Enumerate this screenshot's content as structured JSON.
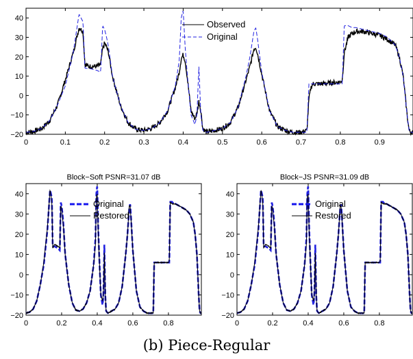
{
  "caption": "(b) Piece-Regular",
  "colors": {
    "observed": "#000000",
    "original": "#2020e0",
    "restored": "#000000",
    "axes": "#000000"
  },
  "chart_data": [
    {
      "type": "line",
      "title": "",
      "xlabel": "",
      "ylabel": "",
      "xlim": [
        0,
        0.985
      ],
      "ylim": [
        -20,
        45
      ],
      "xticks": [
        0,
        0.1,
        0.2,
        0.3,
        0.4,
        0.5,
        0.6,
        0.7,
        0.8,
        0.9
      ],
      "yticks": [
        -20,
        -10,
        0,
        10,
        20,
        30,
        40
      ],
      "legend": {
        "placement": "top-center",
        "entries": [
          "Observed",
          "Original"
        ]
      },
      "series": [
        {
          "name": "Observed",
          "style": "solid",
          "noisy": true
        },
        {
          "name": "Original",
          "style": "dashed"
        }
      ]
    },
    {
      "type": "line",
      "title": "Block−Soft PSNR=31.07 dB",
      "xlabel": "",
      "ylabel": "",
      "xlim": [
        0,
        0.985
      ],
      "ylim": [
        -20,
        45
      ],
      "xticks": [
        0,
        0.2,
        0.4,
        0.6,
        0.8
      ],
      "yticks": [
        -20,
        -10,
        0,
        10,
        20,
        30,
        40
      ],
      "legend": {
        "placement": "top-center",
        "entries": [
          "Original",
          "Restored"
        ]
      },
      "series": [
        {
          "name": "Original",
          "style": "dashed-thick"
        },
        {
          "name": "Restored",
          "style": "solid"
        }
      ]
    },
    {
      "type": "line",
      "title": "Block−JS PSNR=31.09 dB",
      "xlabel": "",
      "ylabel": "",
      "xlim": [
        0,
        0.985
      ],
      "ylim": [
        -20,
        45
      ],
      "xticks": [
        0,
        0.2,
        0.4,
        0.6,
        0.8
      ],
      "yticks": [
        -20,
        -10,
        0,
        10,
        20,
        30,
        40
      ],
      "legend": {
        "placement": "top-center",
        "entries": [
          "Original",
          "Restored"
        ]
      },
      "series": [
        {
          "name": "Original",
          "style": "dashed-thick"
        },
        {
          "name": "Restored",
          "style": "solid"
        }
      ]
    }
  ],
  "signal": {
    "x": [
      0,
      0.02,
      0.04,
      0.06,
      0.08,
      0.1,
      0.12,
      0.135,
      0.145,
      0.15,
      0.16,
      0.18,
      0.19,
      0.195,
      0.2,
      0.205,
      0.21,
      0.22,
      0.24,
      0.26,
      0.28,
      0.3,
      0.32,
      0.34,
      0.36,
      0.38,
      0.39,
      0.395,
      0.4,
      0.405,
      0.41,
      0.42,
      0.43,
      0.435,
      0.44,
      0.445,
      0.45,
      0.46,
      0.48,
      0.5,
      0.52,
      0.54,
      0.56,
      0.57,
      0.58,
      0.585,
      0.59,
      0.6,
      0.62,
      0.64,
      0.66,
      0.68,
      0.7,
      0.715,
      0.72,
      0.725,
      0.73,
      0.75,
      0.8,
      0.805,
      0.81,
      0.82,
      0.83,
      0.84,
      0.86,
      0.88,
      0.9,
      0.92,
      0.94,
      0.95,
      0.96,
      0.97,
      0.975,
      0.98,
      0.985
    ],
    "original": [
      -19,
      -18.5,
      -17,
      -13,
      -5,
      5,
      22,
      42,
      38,
      14,
      14,
      13,
      12,
      36,
      34,
      30,
      25,
      10,
      -5,
      -14,
      -17.5,
      -18,
      -17,
      -14,
      -8,
      5,
      18,
      40,
      44,
      25,
      12,
      -10,
      -15,
      -10,
      15,
      -10,
      -18,
      -19,
      -18,
      -17,
      -14,
      -6,
      10,
      20,
      33,
      35,
      28,
      12,
      -8,
      -16,
      -18,
      -19,
      -19,
      -19,
      6,
      6,
      6,
      6,
      6,
      6,
      36,
      36,
      35,
      35,
      34,
      33,
      32,
      30,
      26,
      20,
      10,
      -10,
      -18,
      -19,
      -19
    ],
    "observed": [
      -19,
      -18.5,
      -17,
      -13,
      -5,
      8,
      22,
      35,
      33,
      16,
      15,
      15,
      16,
      24,
      27,
      25,
      22,
      10,
      -5,
      -14,
      -17.5,
      -18,
      -17,
      -14,
      -8,
      4,
      12,
      19,
      21,
      18,
      10,
      -8,
      -12,
      -9,
      -3,
      -8,
      -17,
      -19,
      -18,
      -17,
      -14,
      -6,
      8,
      15,
      24,
      25,
      21,
      11,
      -8,
      -16,
      -18,
      -19,
      -19,
      -18,
      -2,
      4,
      6,
      6,
      7,
      8,
      22,
      30,
      32,
      33,
      33,
      32,
      31,
      29,
      26,
      20,
      10,
      -10,
      -18,
      -19,
      -19
    ],
    "restored": [
      -19,
      -18.5,
      -17,
      -13,
      -5,
      6,
      23,
      42,
      36,
      13,
      15,
      14,
      13,
      34,
      33,
      28,
      24,
      10,
      -5,
      -14,
      -17.5,
      -18,
      -17,
      -14,
      -8,
      5,
      15,
      38,
      40,
      22,
      11,
      -10,
      -13,
      -9,
      11,
      -10,
      -18,
      -19,
      -18,
      -17,
      -14,
      -6,
      10,
      20,
      34,
      34,
      27,
      12,
      -8,
      -16,
      -18,
      -19,
      -19,
      -19,
      6,
      6,
      6,
      6,
      6,
      7,
      36,
      35,
      35,
      35,
      34,
      33,
      32,
      30,
      26,
      20,
      10,
      -10,
      -18,
      -19,
      -19
    ]
  }
}
